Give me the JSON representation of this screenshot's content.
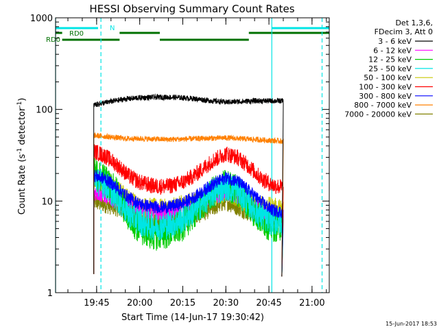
{
  "chart_data": {
    "type": "line",
    "title": "HESSI Observing Summary Count Rates",
    "xlabel": "Start Time (14-Jun-17 19:30:42)",
    "ylabel_main": "Count Rate (s",
    "ylabel_sup1": "-1",
    "ylabel_mid": " detector",
    "ylabel_sup2": "-1",
    "ylabel_end": ")",
    "yscale": "log",
    "ylim": [
      1,
      1000
    ],
    "xlim": [
      "19:30:42",
      "21:06:00"
    ],
    "xticks": [
      "19:45",
      "20:00",
      "20:15",
      "20:30",
      "20:45",
      "21:00"
    ],
    "yticks": [
      "1",
      "10",
      "100",
      "1000"
    ],
    "legend_header": [
      "Det 1,3,6,",
      "FDecim 3, Att 0"
    ],
    "series": [
      {
        "name": "3 - 6 keV",
        "color": "#000000",
        "points": [
          [
            "19:44:00",
            112
          ],
          [
            "19:50:00",
            122
          ],
          [
            "19:55:00",
            130
          ],
          [
            "20:00:00",
            134
          ],
          [
            "20:05:00",
            136
          ],
          [
            "20:10:00",
            136
          ],
          [
            "20:15:00",
            134
          ],
          [
            "20:20:00",
            130
          ],
          [
            "20:25:00",
            124
          ],
          [
            "20:30:00",
            120
          ],
          [
            "20:35:00",
            122
          ],
          [
            "20:40:00",
            124
          ],
          [
            "20:45:00",
            124
          ],
          [
            "20:50:00",
            124
          ]
        ]
      },
      {
        "name": "6 - 12 keV",
        "color": "#ff00ff",
        "points": [
          [
            "19:44:00",
            12.5
          ],
          [
            "19:48:00",
            11.5
          ],
          [
            "19:52:00",
            10
          ],
          [
            "19:56:00",
            9
          ],
          [
            "20:00:00",
            8.2
          ],
          [
            "20:05:00",
            7.5
          ],
          [
            "20:10:00",
            7.3
          ],
          [
            "20:15:00",
            7.8
          ],
          [
            "20:20:00",
            9
          ],
          [
            "20:25:00",
            11
          ],
          [
            "20:30:00",
            12.5
          ],
          [
            "20:34:00",
            11.5
          ],
          [
            "20:38:00",
            9.5
          ],
          [
            "20:42:00",
            8
          ],
          [
            "20:46:00",
            7
          ],
          [
            "20:50:00",
            6.5
          ]
        ]
      },
      {
        "name": "12 - 25 keV",
        "color": "#00cc00",
        "points": [
          [
            "19:44:00",
            20
          ],
          [
            "19:48:00",
            17
          ],
          [
            "19:52:00",
            12
          ],
          [
            "19:56:00",
            7
          ],
          [
            "20:00:00",
            5
          ],
          [
            "20:05:00",
            4.3
          ],
          [
            "20:10:00",
            4.5
          ],
          [
            "20:15:00",
            5.5
          ],
          [
            "20:20:00",
            8
          ],
          [
            "20:25:00",
            12
          ],
          [
            "20:30:00",
            15
          ],
          [
            "20:34:00",
            13
          ],
          [
            "20:38:00",
            9
          ],
          [
            "20:42:00",
            6.5
          ],
          [
            "20:46:00",
            5.3
          ],
          [
            "20:50:00",
            5.5
          ]
        ]
      },
      {
        "name": "25 - 50 keV",
        "color": "#00e5e5",
        "points": [
          [
            "19:44:00",
            17
          ],
          [
            "19:48:00",
            15
          ],
          [
            "19:52:00",
            11
          ],
          [
            "19:56:00",
            7.5
          ],
          [
            "20:00:00",
            6
          ],
          [
            "20:05:00",
            5.3
          ],
          [
            "20:10:00",
            5.5
          ],
          [
            "20:15:00",
            6.3
          ],
          [
            "20:20:00",
            8.5
          ],
          [
            "20:25:00",
            12
          ],
          [
            "20:30:00",
            14.5
          ],
          [
            "20:34:00",
            13
          ],
          [
            "20:38:00",
            9.5
          ],
          [
            "20:42:00",
            7
          ],
          [
            "20:46:00",
            6
          ],
          [
            "20:50:00",
            6
          ]
        ]
      },
      {
        "name": "50 - 100 keV",
        "color": "#c8c800",
        "points": [
          [
            "19:44:00",
            17
          ],
          [
            "19:50:00",
            15
          ],
          [
            "19:55:00",
            11
          ],
          [
            "20:00:00",
            8.5
          ],
          [
            "20:10:00",
            8
          ],
          [
            "20:20:00",
            10
          ],
          [
            "20:30:00",
            13
          ],
          [
            "20:40:00",
            9
          ],
          [
            "20:50:00",
            8
          ]
        ]
      },
      {
        "name": "100 - 300 keV",
        "color": "#ff0000",
        "points": [
          [
            "19:44:00",
            35
          ],
          [
            "19:48:00",
            31
          ],
          [
            "19:52:00",
            25
          ],
          [
            "19:56:00",
            19
          ],
          [
            "20:00:00",
            16
          ],
          [
            "20:05:00",
            14.5
          ],
          [
            "20:10:00",
            14.5
          ],
          [
            "20:15:00",
            16
          ],
          [
            "20:20:00",
            20
          ],
          [
            "20:25:00",
            27
          ],
          [
            "20:30:00",
            33
          ],
          [
            "20:34:00",
            30
          ],
          [
            "20:38:00",
            24
          ],
          [
            "20:42:00",
            18
          ],
          [
            "20:46:00",
            15
          ],
          [
            "20:50:00",
            14
          ]
        ]
      },
      {
        "name": "300 - 800 keV",
        "color": "#0000ff",
        "points": [
          [
            "19:44:00",
            19
          ],
          [
            "19:48:00",
            17.5
          ],
          [
            "19:52:00",
            14
          ],
          [
            "19:56:00",
            11
          ],
          [
            "20:00:00",
            9.3
          ],
          [
            "20:05:00",
            8.6
          ],
          [
            "20:10:00",
            8.6
          ],
          [
            "20:15:00",
            9.5
          ],
          [
            "20:20:00",
            11.5
          ],
          [
            "20:25:00",
            15
          ],
          [
            "20:30:00",
            18
          ],
          [
            "20:34:00",
            16.5
          ],
          [
            "20:38:00",
            13
          ],
          [
            "20:42:00",
            10
          ],
          [
            "20:46:00",
            8
          ],
          [
            "20:50:00",
            7.5
          ]
        ]
      },
      {
        "name": "800 - 7000 keV",
        "color": "#ff8000",
        "points": [
          [
            "19:44:00",
            52
          ],
          [
            "19:50:00",
            50
          ],
          [
            "19:55:00",
            48
          ],
          [
            "20:00:00",
            48
          ],
          [
            "20:10:00",
            47
          ],
          [
            "20:20:00",
            48
          ],
          [
            "20:30:00",
            49
          ],
          [
            "20:40:00",
            47
          ],
          [
            "20:45:00",
            46
          ],
          [
            "20:50:00",
            45
          ]
        ]
      },
      {
        "name": "7000 - 20000 keV",
        "color": "#808000",
        "points": [
          [
            "19:44:00",
            10
          ],
          [
            "19:52:00",
            8.5
          ],
          [
            "20:00:00",
            6
          ],
          [
            "20:10:00",
            5.5
          ],
          [
            "20:20:00",
            7
          ],
          [
            "20:30:00",
            10
          ],
          [
            "20:40:00",
            7
          ],
          [
            "20:50:00",
            6.5
          ]
        ]
      }
    ],
    "flags": {
      "N_label": "N",
      "N_color": "#00e5e5",
      "N_intervals": [
        [
          "19:30:42",
          "19:45:30"
        ],
        [
          "20:46:00",
          "21:06:00"
        ]
      ],
      "RD0_top_label": "RD0",
      "RD0_top_intervals": [
        [
          "19:30:42",
          "19:33:00"
        ],
        [
          "19:53:00",
          "20:07:00"
        ],
        [
          "20:38:00",
          "21:06:00"
        ]
      ],
      "RD0_bottom_label": "RD0",
      "RD0_bottom_intervals": [
        [
          "19:33:00",
          "19:53:00"
        ],
        [
          "20:07:00",
          "20:38:00"
        ]
      ],
      "RD0_color": "#007000"
    },
    "vlines": {
      "solid": [
        "19:30:42",
        "20:46:00"
      ],
      "dashed": [
        "19:46:30",
        "21:03:30"
      ],
      "color": "#00e5e5"
    },
    "data_end": "20:49:30",
    "footer_date": "15-Jun-2017 18:53"
  }
}
